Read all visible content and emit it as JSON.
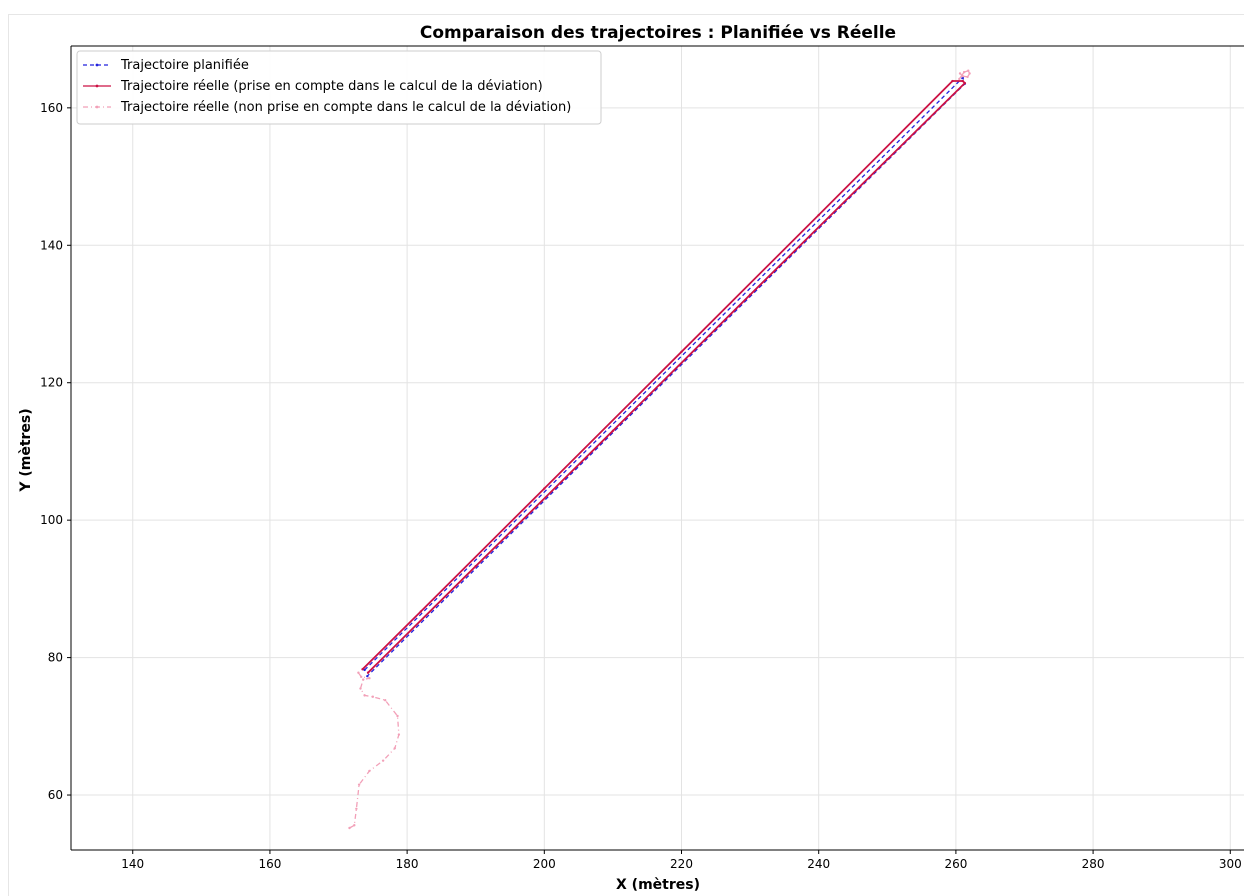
{
  "chart_data": {
    "type": "line",
    "title": "Comparaison des trajectoires : Planifiée vs Réelle",
    "xlabel": "X (mètres)",
    "ylabel": "Y (mètres)",
    "xlim": [
      131,
      302
    ],
    "ylim": [
      52,
      169
    ],
    "xticks": [
      140,
      160,
      180,
      200,
      220,
      240,
      260,
      280,
      300
    ],
    "yticks": [
      60,
      80,
      100,
      120,
      140,
      160
    ],
    "grid": true,
    "legend_position": "top-left",
    "series": [
      {
        "name": "Trajectoire planifiée",
        "color": "#2222dd",
        "style": "dashed",
        "x": [
          173.8,
          261.0,
          261.3,
          174.2
        ],
        "y": [
          78.2,
          164.4,
          163.5,
          77.3
        ]
      },
      {
        "name": "Trajectoire réelle (prise en compte dans le calcul de la déviation)",
        "color": "#cc1144",
        "style": "solid",
        "x": [
          173.5,
          182.0,
          200.0,
          220.0,
          240.0,
          259.5,
          261.0,
          261.3,
          250.0,
          230.0,
          210.0,
          190.0,
          174.3
        ],
        "y": [
          78.3,
          86.7,
          104.6,
          124.5,
          144.4,
          163.9,
          163.9,
          163.6,
          152.5,
          132.8,
          113.0,
          93.3,
          77.8
        ]
      },
      {
        "name": "Trajectoire réelle (non prise en compte dans le calcul de la déviation)",
        "color": "#f2a0b8",
        "style": "dashdot",
        "x": [
          171.6,
          172.3,
          172.6,
          173.0,
          174.5,
          176.5,
          178.2,
          178.8,
          178.6,
          176.8,
          175.0,
          173.8,
          173.2,
          173.6,
          174.5,
          173.3,
          172.9
        ],
        "y": [
          55.2,
          55.6,
          58.0,
          61.5,
          63.5,
          65.0,
          66.8,
          68.8,
          71.5,
          73.8,
          74.3,
          74.5,
          75.5,
          76.8,
          77.0,
          77.2,
          77.8
        ]
      },
      {
        "name": "",
        "color": "#f2a0b8",
        "style": "solid",
        "x": [
          260.5,
          261.2,
          261.8,
          262.0,
          261.7,
          261.0,
          260.6
        ],
        "y": [
          164.2,
          165.2,
          165.4,
          165.0,
          164.5,
          164.6,
          165.0
        ]
      }
    ]
  }
}
